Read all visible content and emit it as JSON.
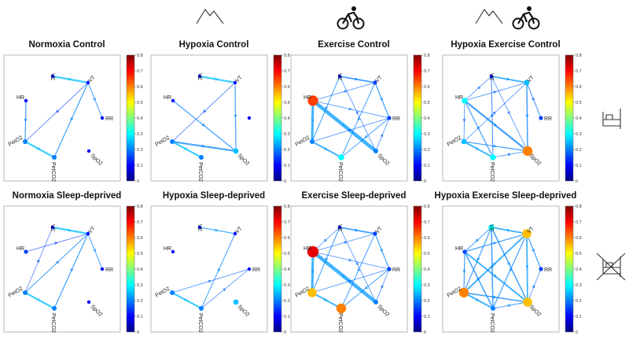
{
  "nodes": [
    "VE",
    "VT",
    "HR",
    "RR",
    "PetO2",
    "PetCO2",
    "SpO2"
  ],
  "colorbar": {
    "ticks": [
      "0",
      "0.1",
      "0.2",
      "0.3",
      "0.4",
      "0.5",
      "0.6",
      "0.7",
      "0.8"
    ],
    "colors": [
      "#00007f",
      "#0000ff",
      "#007fff",
      "#00ffff",
      "#7fff7f",
      "#ffff00",
      "#ff7f00",
      "#ff0000",
      "#7f0000"
    ]
  },
  "headers": [
    {
      "name": "mountain-icon",
      "col": 1
    },
    {
      "name": "cyclist-icon",
      "col": 2
    },
    {
      "name": "mountain-icon",
      "col": 3
    },
    {
      "name": "cyclist-icon",
      "col": 3
    }
  ],
  "rows": [
    {
      "name": "control",
      "icon": "bed-icon"
    },
    {
      "name": "sleep-deprived",
      "icon": "crossed-bed-icon"
    }
  ],
  "panels": [
    {
      "title": "Normoxia Control",
      "node_values": {
        "VE": 0.1,
        "VT": 0.1,
        "HR": 0.1,
        "RR": 0.1,
        "PetO2": 0.2,
        "PetCO2": 0.2,
        "SpO2": 0.1
      },
      "hidden_nodes": [],
      "edges": [
        [
          "VE",
          "VT",
          0.25,
          2.2
        ],
        [
          "VT",
          "PetCO2",
          0.2,
          1.2
        ],
        [
          "PetO2",
          "PetCO2",
          0.25,
          2.2
        ],
        [
          "HR",
          "PetO2",
          0.2,
          1.2
        ],
        [
          "VT",
          "RR",
          0.2,
          1
        ],
        [
          "VT",
          "PetO2",
          0.15,
          0.8
        ]
      ]
    },
    {
      "title": "Hypoxia Control",
      "node_values": {
        "VE": 0.1,
        "VT": 0.1,
        "HR": 0.1,
        "RR": 0.1,
        "PetO2": 0.2,
        "PetCO2": 0.2,
        "SpO2": 0.25
      },
      "hidden_nodes": [
        "RR"
      ],
      "edges": [
        [
          "VE",
          "VT",
          0.25,
          2.2
        ],
        [
          "VT",
          "SpO2",
          0.2,
          1.2
        ],
        [
          "PetO2",
          "SpO2",
          0.2,
          2
        ],
        [
          "HR",
          "SpO2",
          0.2,
          1.2
        ],
        [
          "PetO2",
          "PetCO2",
          0.25,
          2.2
        ],
        [
          "VT",
          "PetO2",
          0.15,
          0.8
        ]
      ]
    },
    {
      "title": "Exercise Control",
      "node_values": {
        "VE": 0.1,
        "VT": 0.15,
        "HR": 0.65,
        "RR": 0.15,
        "PetO2": 0.2,
        "PetCO2": 0.3,
        "SpO2": 0.2
      },
      "hidden_nodes": [],
      "edges": [
        [
          "HR",
          "SpO2",
          0.22,
          4.5
        ],
        [
          "HR",
          "PetO2",
          0.22,
          3
        ],
        [
          "VE",
          "VT",
          0.2,
          1.8
        ],
        [
          "VT",
          "RR",
          0.2,
          1.2
        ],
        [
          "PetO2",
          "PetCO2",
          0.22,
          2
        ],
        [
          "VE",
          "PetO2",
          0.2,
          1
        ],
        [
          "VT",
          "PetCO2",
          0.2,
          1
        ],
        [
          "RR",
          "PetCO2",
          0.2,
          1
        ],
        [
          "HR",
          "RR",
          0.18,
          0.8
        ],
        [
          "VE",
          "SpO2",
          0.18,
          0.8
        ],
        [
          "PetO2",
          "RR",
          0.18,
          0.8
        ],
        [
          "SpO2",
          "RR",
          0.18,
          0.8
        ],
        [
          "VT",
          "HR",
          0.18,
          0.8
        ]
      ]
    },
    {
      "title": "Hypoxia Exercise Control",
      "node_values": {
        "VE": 0.1,
        "VT": 0.25,
        "HR": 0.3,
        "RR": 0.15,
        "PetO2": 0.25,
        "PetCO2": 0.3,
        "SpO2": 0.6
      },
      "hidden_nodes": [],
      "edges": [
        [
          "HR",
          "SpO2",
          0.2,
          2.2
        ],
        [
          "PetO2",
          "PetCO2",
          0.22,
          2
        ],
        [
          "VE",
          "VT",
          0.22,
          1.8
        ],
        [
          "VT",
          "SpO2",
          0.2,
          1.5
        ],
        [
          "HR",
          "PetCO2",
          0.2,
          1.2
        ],
        [
          "PetO2",
          "SpO2",
          0.2,
          1.2
        ],
        [
          "VE",
          "PetCO2",
          0.18,
          1
        ],
        [
          "VT",
          "RR",
          0.18,
          1
        ],
        [
          "HR",
          "VT",
          0.18,
          0.8
        ],
        [
          "PetO2",
          "VT",
          0.18,
          0.8
        ],
        [
          "VE",
          "HR",
          0.18,
          0.8
        ],
        [
          "PetCO2",
          "SpO2",
          0.18,
          0.8
        ],
        [
          "VE",
          "SpO2",
          0.18,
          0.8
        ],
        [
          "HR",
          "PetO2",
          0.18,
          0.8
        ]
      ]
    },
    {
      "title": "Normoxia Sleep-deprived",
      "node_values": {
        "VE": 0.1,
        "VT": 0.1,
        "HR": 0.15,
        "RR": 0.1,
        "PetO2": 0.2,
        "PetCO2": 0.2,
        "SpO2": 0.1
      },
      "hidden_nodes": [],
      "edges": [
        [
          "VE",
          "VT",
          0.25,
          2.2
        ],
        [
          "VT",
          "PetCO2",
          0.2,
          1.2
        ],
        [
          "PetO2",
          "PetCO2",
          0.25,
          2.2
        ],
        [
          "VT",
          "PetO2",
          0.2,
          1
        ],
        [
          "VT",
          "RR",
          0.2,
          1
        ],
        [
          "HR",
          "VT",
          0.15,
          0.8
        ],
        [
          "PetO2",
          "VE",
          0.15,
          0.7
        ]
      ]
    },
    {
      "title": "Hypoxia Sleep-deprived",
      "node_values": {
        "VE": 0.1,
        "VT": 0.1,
        "HR": 0.1,
        "RR": 0.1,
        "PetO2": 0.2,
        "PetCO2": 0.2,
        "SpO2": 0.25
      },
      "hidden_nodes": [],
      "edges": [
        [
          "VE",
          "VT",
          0.22,
          1.2
        ],
        [
          "VT",
          "PetCO2",
          0.2,
          1
        ],
        [
          "PetO2",
          "PetCO2",
          0.25,
          2.2
        ],
        [
          "PetO2",
          "RR",
          0.18,
          0.8
        ],
        [
          "PetCO2",
          "RR",
          0.18,
          0.8
        ]
      ]
    },
    {
      "title": "Exercise Sleep-deprived",
      "node_values": {
        "VE": 0.1,
        "VT": 0.15,
        "HR": 0.72,
        "RR": 0.15,
        "PetO2": 0.55,
        "PetCO2": 0.6,
        "SpO2": 0.2
      },
      "hidden_nodes": [],
      "edges": [
        [
          "HR",
          "SpO2",
          0.22,
          4.5
        ],
        [
          "HR",
          "PetO2",
          0.22,
          3
        ],
        [
          "PetO2",
          "PetCO2",
          0.22,
          2
        ],
        [
          "VE",
          "VT",
          0.2,
          1.8
        ],
        [
          "VT",
          "RR",
          0.2,
          1.2
        ],
        [
          "VE",
          "PetO2",
          0.2,
          1
        ],
        [
          "VT",
          "PetCO2",
          0.2,
          1
        ],
        [
          "RR",
          "PetCO2",
          0.2,
          1
        ],
        [
          "HR",
          "RR",
          0.18,
          0.8
        ],
        [
          "VE",
          "SpO2",
          0.18,
          0.8
        ],
        [
          "PetO2",
          "RR",
          0.18,
          0.8
        ],
        [
          "SpO2",
          "RR",
          0.18,
          0.8
        ],
        [
          "VT",
          "HR",
          0.18,
          0.8
        ],
        [
          "HR",
          "VE",
          0.18,
          0.8
        ]
      ]
    },
    {
      "title": "Hypoxia Exercise Sleep-deprived",
      "node_values": {
        "VE": 0.3,
        "VT": 0.55,
        "HR": 0.15,
        "RR": 0.15,
        "PetO2": 0.6,
        "PetCO2": 0.2,
        "SpO2": 0.55
      },
      "hidden_nodes": [],
      "edges": [
        [
          "HR",
          "SpO2",
          0.22,
          2
        ],
        [
          "PetO2",
          "VT",
          0.22,
          2
        ],
        [
          "PetO2",
          "PetCO2",
          0.22,
          2
        ],
        [
          "VE",
          "VT",
          0.22,
          1.8
        ],
        [
          "VT",
          "SpO2",
          0.22,
          1.8
        ],
        [
          "HR",
          "PetCO2",
          0.2,
          1.5
        ],
        [
          "VE",
          "PetCO2",
          0.2,
          1.5
        ],
        [
          "PetO2",
          "SpO2",
          0.2,
          1.5
        ],
        [
          "VE",
          "SpO2",
          0.2,
          1.5
        ],
        [
          "HR",
          "VT",
          0.2,
          1.2
        ],
        [
          "VT",
          "RR",
          0.2,
          1.2
        ],
        [
          "VE",
          "PetO2",
          0.2,
          1.2
        ],
        [
          "HR",
          "VE",
          0.2,
          1
        ],
        [
          "PetCO2",
          "SpO2",
          0.2,
          1
        ],
        [
          "HR",
          "PetO2",
          0.2,
          1.2
        ],
        [
          "SpO2",
          "RR",
          0.18,
          0.8
        ],
        [
          "VT",
          "PetCO2",
          0.2,
          1.2
        ]
      ]
    }
  ]
}
